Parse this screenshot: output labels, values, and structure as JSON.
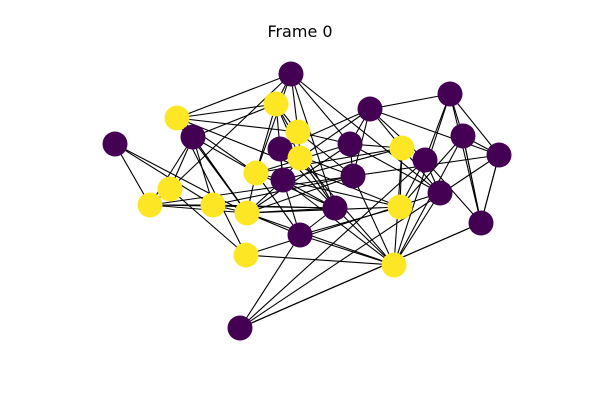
{
  "title": "Frame 0",
  "colors": {
    "state_0": "#440154",
    "state_1": "#fde725",
    "edge": "#000000",
    "background": "#ffffff"
  },
  "graph": {
    "node_count": 32,
    "nodes": [
      {
        "id": 0,
        "state": 0
      },
      {
        "id": 1,
        "state": 1
      },
      {
        "id": 2,
        "state": 1
      },
      {
        "id": 3,
        "state": 0
      },
      {
        "id": 4,
        "state": 1
      },
      {
        "id": 5,
        "state": 1
      },
      {
        "id": 6,
        "state": 0
      },
      {
        "id": 7,
        "state": 1
      },
      {
        "id": 8,
        "state": 1
      },
      {
        "id": 9,
        "state": 1
      },
      {
        "id": 10,
        "state": 0
      },
      {
        "id": 11,
        "state": 0
      },
      {
        "id": 12,
        "state": 0
      },
      {
        "id": 13,
        "state": 1
      },
      {
        "id": 14,
        "state": 0
      },
      {
        "id": 15,
        "state": 1
      },
      {
        "id": 16,
        "state": 0
      },
      {
        "id": 17,
        "state": 0
      },
      {
        "id": 18,
        "state": 0
      },
      {
        "id": 19,
        "state": 1
      },
      {
        "id": 20,
        "state": 1
      },
      {
        "id": 21,
        "state": 1
      },
      {
        "id": 22,
        "state": 1
      },
      {
        "id": 23,
        "state": 0
      },
      {
        "id": 24,
        "state": 0
      },
      {
        "id": 25,
        "state": 0
      },
      {
        "id": 26,
        "state": 0
      },
      {
        "id": 27,
        "state": 0
      },
      {
        "id": 28,
        "state": 0
      },
      {
        "id": 29,
        "state": 0
      },
      {
        "id": 30,
        "state": 0
      },
      {
        "id": 31,
        "state": 0
      }
    ],
    "edges": [
      [
        0,
        2
      ],
      [
        0,
        7
      ],
      [
        0,
        8
      ],
      [
        1,
        5
      ],
      [
        1,
        6
      ],
      [
        1,
        8
      ],
      [
        1,
        13
      ],
      [
        1,
        9
      ],
      [
        1,
        20
      ],
      [
        1,
        21
      ],
      [
        2,
        4
      ],
      [
        2,
        7
      ],
      [
        2,
        3
      ],
      [
        2,
        8
      ],
      [
        2,
        12
      ],
      [
        2,
        17
      ],
      [
        3,
        4
      ],
      [
        3,
        5
      ],
      [
        3,
        7
      ],
      [
        3,
        8
      ],
      [
        3,
        9
      ],
      [
        4,
        6
      ],
      [
        4,
        21
      ],
      [
        5,
        6
      ],
      [
        5,
        13
      ],
      [
        5,
        15
      ],
      [
        5,
        9
      ],
      [
        5,
        10
      ],
      [
        5,
        12
      ],
      [
        6,
        13
      ],
      [
        6,
        9
      ],
      [
        6,
        12
      ],
      [
        6,
        23
      ],
      [
        6,
        16
      ],
      [
        7,
        8
      ],
      [
        7,
        12
      ],
      [
        7,
        17
      ],
      [
        8,
        9
      ],
      [
        8,
        12
      ],
      [
        8,
        10
      ],
      [
        8,
        17
      ],
      [
        8,
        16
      ],
      [
        8,
        22
      ],
      [
        8,
        11
      ],
      [
        8,
        20
      ],
      [
        9,
        10
      ],
      [
        9,
        12
      ],
      [
        9,
        16
      ],
      [
        9,
        11
      ],
      [
        9,
        19
      ],
      [
        10,
        12
      ],
      [
        10,
        11
      ],
      [
        10,
        14
      ],
      [
        10,
        15
      ],
      [
        10,
        20
      ],
      [
        10,
        22
      ],
      [
        10,
        19
      ],
      [
        11,
        12
      ],
      [
        11,
        22
      ],
      [
        11,
        20
      ],
      [
        12,
        15
      ],
      [
        12,
        22
      ],
      [
        12,
        14
      ],
      [
        13,
        14
      ],
      [
        13,
        16
      ],
      [
        13,
        17
      ],
      [
        14,
        18
      ],
      [
        14,
        15
      ],
      [
        14,
        17
      ],
      [
        15,
        18
      ],
      [
        15,
        22
      ],
      [
        16,
        17
      ],
      [
        16,
        18
      ],
      [
        16,
        23
      ],
      [
        16,
        19
      ],
      [
        17,
        18
      ],
      [
        17,
        22
      ],
      [
        17,
        27
      ],
      [
        18,
        19
      ],
      [
        18,
        24
      ],
      [
        18,
        25
      ],
      [
        18,
        27
      ],
      [
        19,
        22
      ],
      [
        19,
        20
      ],
      [
        19,
        23
      ],
      [
        20,
        24
      ],
      [
        20,
        26
      ],
      [
        21,
        23
      ],
      [
        21,
        22
      ],
      [
        22,
        23
      ],
      [
        22,
        25
      ],
      [
        22,
        26
      ],
      [
        23,
        24
      ],
      [
        24,
        25
      ],
      [
        24,
        28
      ],
      [
        24,
        29
      ],
      [
        25,
        26
      ],
      [
        25,
        27
      ],
      [
        25,
        28
      ],
      [
        26,
        27
      ],
      [
        26,
        28
      ],
      [
        26,
        30
      ],
      [
        27,
        28
      ],
      [
        27,
        29
      ],
      [
        27,
        31
      ],
      [
        28,
        29
      ],
      [
        29,
        30
      ],
      [
        30,
        31
      ]
    ]
  }
}
